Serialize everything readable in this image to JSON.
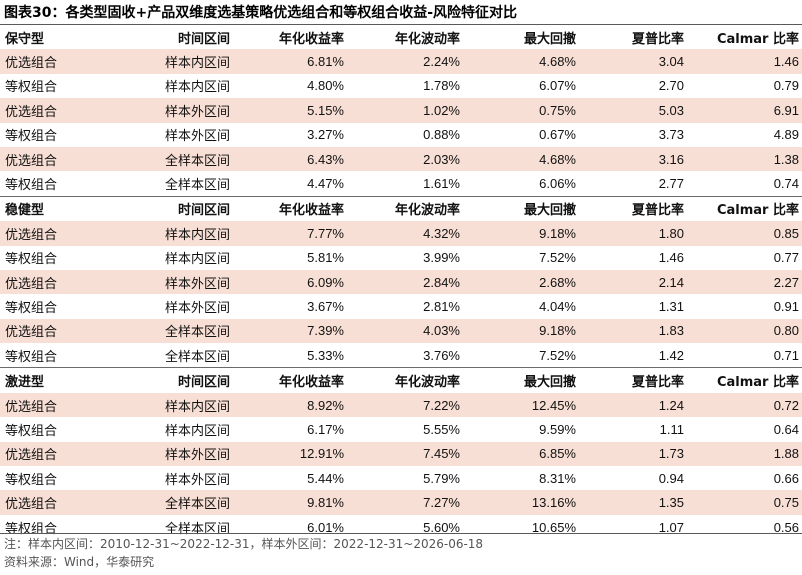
{
  "title": "图表30：各类型固收+产品双维度选基策略优选组合和等权组合收益-风险特征对比",
  "sections": [
    {
      "header": [
        "保守型",
        "时间区间",
        "年化收益率",
        "年化波动率",
        "最大回撤",
        "夏普比率",
        "Calmar 比率"
      ],
      "rows": [
        [
          "优选组合",
          "样本内区间",
          "6.81%",
          "2.24%",
          "4.68%",
          "3.04",
          "1.46"
        ],
        [
          "等权组合",
          "样本内区间",
          "4.80%",
          "1.78%",
          "6.07%",
          "2.70",
          "0.79"
        ],
        [
          "优选组合",
          "样本外区间",
          "5.15%",
          "1.02%",
          "0.75%",
          "5.03",
          "6.91"
        ],
        [
          "等权组合",
          "样本外区间",
          "3.27%",
          "0.88%",
          "0.67%",
          "3.73",
          "4.89"
        ],
        [
          "优选组合",
          "全样本区间",
          "6.43%",
          "2.03%",
          "4.68%",
          "3.16",
          "1.38"
        ],
        [
          "等权组合",
          "全样本区间",
          "4.47%",
          "1.61%",
          "6.06%",
          "2.77",
          "0.74"
        ]
      ]
    },
    {
      "header": [
        "稳健型",
        "时间区间",
        "年化收益率",
        "年化波动率",
        "最大回撤",
        "夏普比率",
        "Calmar 比率"
      ],
      "rows": [
        [
          "优选组合",
          "样本内区间",
          "7.77%",
          "4.32%",
          "9.18%",
          "1.80",
          "0.85"
        ],
        [
          "等权组合",
          "样本内区间",
          "5.81%",
          "3.99%",
          "7.52%",
          "1.46",
          "0.77"
        ],
        [
          "优选组合",
          "样本外区间",
          "6.09%",
          "2.84%",
          "2.68%",
          "2.14",
          "2.27"
        ],
        [
          "等权组合",
          "样本外区间",
          "3.67%",
          "2.81%",
          "4.04%",
          "1.31",
          "0.91"
        ],
        [
          "优选组合",
          "全样本区间",
          "7.39%",
          "4.03%",
          "9.18%",
          "1.83",
          "0.80"
        ],
        [
          "等权组合",
          "全样本区间",
          "5.33%",
          "3.76%",
          "7.52%",
          "1.42",
          "0.71"
        ]
      ]
    },
    {
      "header": [
        "激进型",
        "时间区间",
        "年化收益率",
        "年化波动率",
        "最大回撤",
        "夏普比率",
        "Calmar 比率"
      ],
      "rows": [
        [
          "优选组合",
          "样本内区间",
          "8.92%",
          "7.22%",
          "12.45%",
          "1.24",
          "0.72"
        ],
        [
          "等权组合",
          "样本内区间",
          "6.17%",
          "5.55%",
          "9.59%",
          "1.11",
          "0.64"
        ],
        [
          "优选组合",
          "样本外区间",
          "12.91%",
          "7.45%",
          "6.85%",
          "1.73",
          "1.88"
        ],
        [
          "等权组合",
          "样本外区间",
          "5.44%",
          "5.79%",
          "8.31%",
          "0.94",
          "0.66"
        ],
        [
          "优选组合",
          "全样本区间",
          "9.81%",
          "7.27%",
          "13.16%",
          "1.35",
          "0.75"
        ],
        [
          "等权组合",
          "全样本区间",
          "6.01%",
          "5.60%",
          "10.65%",
          "1.07",
          "0.56"
        ]
      ]
    }
  ],
  "notes": [
    "注：样本内区间：2010-12-31~2022-12-31，样本外区间：2022-12-31~2026-06-18",
    "资料来源：Wind，华泰研究"
  ],
  "colors": {
    "highlight_row": "#f8dfd5",
    "rule": "#5a5a5a"
  }
}
